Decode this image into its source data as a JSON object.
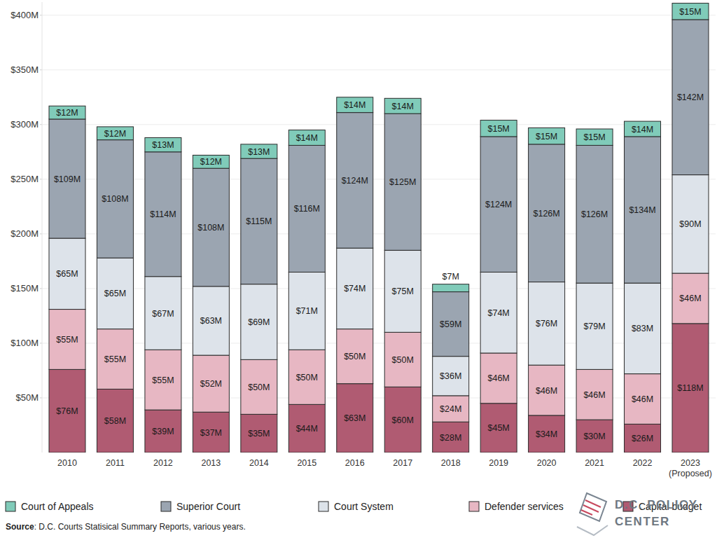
{
  "chart_data": {
    "type": "bar",
    "stacked": true,
    "data_labels": true,
    "grid": true,
    "legend": "bottom",
    "categories": [
      "2010",
      "2011",
      "2012",
      "2013",
      "2014",
      "2015",
      "2016",
      "2017",
      "2018",
      "2019",
      "2020",
      "2021",
      "2022",
      "2023 (Proposed)"
    ],
    "series": [
      {
        "name": "Capital budget",
        "color": "#b05b72",
        "values": [
          76,
          58,
          39,
          37,
          35,
          44,
          63,
          60,
          28,
          45,
          34,
          30,
          26,
          118
        ],
        "value_labels": [
          "$76M",
          "$58M",
          "$39M",
          "$37M",
          "$35M",
          "$44M",
          "$63M",
          "$60M",
          "$28M",
          "$45M",
          "$34M",
          "$30M",
          "$26M",
          "$118M"
        ]
      },
      {
        "name": "Defender services",
        "color": "#e7b7c3",
        "values": [
          55,
          55,
          55,
          52,
          50,
          50,
          50,
          50,
          24,
          46,
          46,
          46,
          46,
          46
        ],
        "value_labels": [
          "$55M",
          "$55M",
          "$55M",
          "$52M",
          "$50M",
          "$50M",
          "$50M",
          "$50M",
          "$24M",
          "$46M",
          "$46M",
          "$46M",
          "$46M",
          "$46M"
        ]
      },
      {
        "name": "Court System",
        "color": "#dde3ea",
        "values": [
          65,
          65,
          67,
          63,
          69,
          71,
          74,
          75,
          36,
          74,
          76,
          79,
          83,
          90
        ],
        "value_labels": [
          "$65M",
          "$65M",
          "$67M",
          "$63M",
          "$69M",
          "$71M",
          "$74M",
          "$75M",
          "$36M",
          "$74M",
          "$76M",
          "$79M",
          "$83M",
          "$90M"
        ]
      },
      {
        "name": "Superior Court",
        "color": "#9ba5b1",
        "values": [
          109,
          108,
          114,
          108,
          115,
          116,
          124,
          125,
          59,
          124,
          126,
          126,
          134,
          142
        ],
        "value_labels": [
          "$109M",
          "$108M",
          "$114M",
          "$108M",
          "$115M",
          "$116M",
          "$124M",
          "$125M",
          "$59M",
          "$124M",
          "$126M",
          "$126M",
          "$134M",
          "$142M"
        ]
      },
      {
        "name": "Court of Appeals",
        "color": "#80cbb9",
        "values": [
          12,
          12,
          13,
          12,
          13,
          14,
          14,
          14,
          7,
          15,
          15,
          15,
          14,
          15
        ],
        "value_labels": [
          "$12M",
          "$12M",
          "$13M",
          "$12M",
          "$13M",
          "$14M",
          "$14M",
          "$14M",
          "$7M",
          "$15M",
          "$15M",
          "$15M",
          "$14M",
          "$15M"
        ]
      }
    ],
    "ylim": [
      0,
      412
    ],
    "yticks": [
      {
        "value": 50,
        "label": "$50M"
      },
      {
        "value": 100,
        "label": "$100M"
      },
      {
        "value": 150,
        "label": "$150M"
      },
      {
        "value": 200,
        "label": "$200M"
      },
      {
        "value": 250,
        "label": "$250M"
      },
      {
        "value": 300,
        "label": "$300M"
      },
      {
        "value": 350,
        "label": "$350M"
      },
      {
        "value": 400,
        "label": "$400M"
      }
    ],
    "source": "Source: D.C. Courts Statisical Summary Reports, various years.",
    "annotations": [
      "D.C. POLICY",
      "CENTER"
    ]
  }
}
